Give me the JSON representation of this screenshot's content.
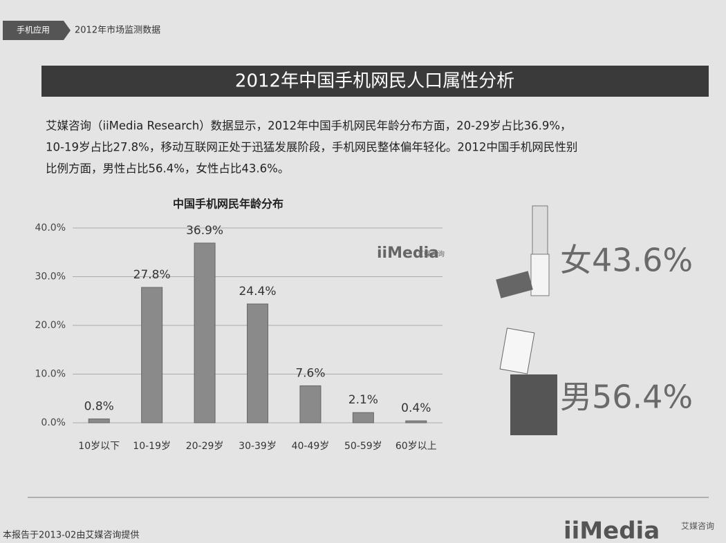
{
  "breadcrumb": [
    "手机应用",
    "2012年市场监测数据"
  ],
  "title": "2012年中国手机网民人口属性分析",
  "paragraph": {
    "lines": [
      "艾媒咨询（iiMedia Research）数据显示，2012年中国手机网民年龄分布方面，20-29岁占比36.9%，",
      "10-19岁占比27.8%，移动互联网正处于迅猛发展阶段，手机网民整体偏年轻化。2012中国手机网民性别",
      "比例方面，男性占比56.4%，女性占比43.6%。"
    ]
  },
  "chart_data": {
    "type": "bar",
    "title": "中国手机网民年龄分布",
    "categories": [
      "10岁以下",
      "10-19岁",
      "20-29岁",
      "30-39岁",
      "40-49岁",
      "50-59岁",
      "60岁以上"
    ],
    "values": [
      0.8,
      27.8,
      36.9,
      24.4,
      7.6,
      2.1,
      0.4
    ],
    "value_labels": [
      "0.8%",
      "27.8%",
      "36.9%",
      "24.4%",
      "7.6%",
      "2.1%",
      "0.4%"
    ],
    "color": "#8a8a8a",
    "ylim": [
      0,
      40
    ],
    "yticks": [
      {
        "value": 0,
        "label": "0.0%"
      },
      {
        "value": 10,
        "label": "10.0%"
      },
      {
        "value": 20,
        "label": "20.0%"
      },
      {
        "value": 30,
        "label": "30.0%"
      },
      {
        "value": 40,
        "label": "40.0%"
      }
    ],
    "grid": true
  },
  "watermark": {
    "brand": "iiMedia",
    "sub": "艾媒咨询"
  },
  "gender": [
    "女43.6%",
    "男56.4%"
  ],
  "footer": "本报告于2013-02由艾媒咨询提供"
}
